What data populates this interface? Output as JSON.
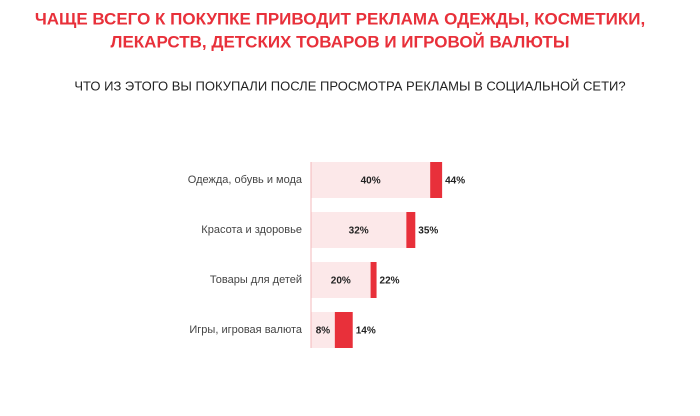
{
  "chart_data": {
    "type": "overlap-bar",
    "title": [
      "ЧАЩЕ ВСЕГО К ПОКУПКЕ ПРИВОДИТ РЕКЛАМА ОДЕЖДЫ, КОСМЕТИКИ,",
      "ЛЕКАРСТВ, ДЕТСКИХ ТОВАРОВ И ИГРОВОЙ ВАЛЮТЫ"
    ],
    "subtitle": "ЧТО ИЗ ЭТОГО ВЫ ПОКУПАЛИ ПОСЛЕ ПРОСМОТРА РЕКЛАМЫ В СОЦИАЛЬНОЙ СЕТИ?",
    "categories": [
      "Одежда, обувь и мода",
      "Красота и здоровье",
      "Товары для детей",
      "Игры, игровая валюта"
    ],
    "series": [
      {
        "color": "#e8303a",
        "values": [
          44,
          35,
          22,
          14
        ],
        "value_labels": [
          "44%",
          "35%",
          "22%",
          "14%"
        ]
      },
      {
        "color": "#fce8e9",
        "values": [
          40,
          32,
          20,
          8
        ],
        "value_labels": [
          "40%",
          "32%",
          "20%",
          "8%"
        ]
      }
    ]
  }
}
